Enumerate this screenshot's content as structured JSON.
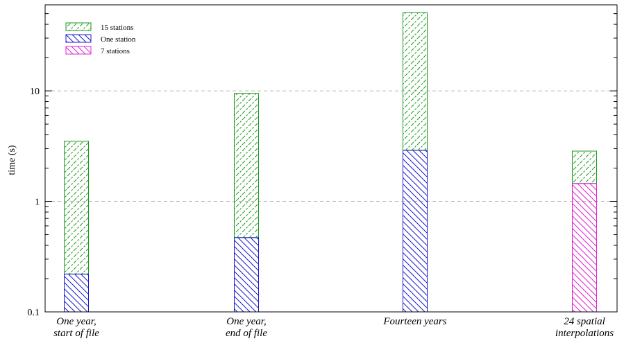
{
  "chart_data": {
    "type": "bar",
    "ylabel": "time (s)",
    "yscale": "log",
    "ylim": [
      0.1,
      60
    ],
    "grid": "y-major-dashed",
    "categories": [
      [
        "One year,",
        "start of file"
      ],
      [
        "One year,",
        "end of file"
      ],
      [
        "Fourteen years"
      ],
      [
        "24  spatial",
        "interpolations"
      ]
    ],
    "yticks": [
      {
        "value": 0.1,
        "label": "0.1"
      },
      {
        "value": 1,
        "label": "1"
      },
      {
        "value": 10,
        "label": "10"
      }
    ],
    "bars": [
      {
        "category": 0,
        "lower": {
          "series": "One station",
          "value": 0.22
        },
        "upper": {
          "series": "15 stations",
          "value": 3.5
        }
      },
      {
        "category": 1,
        "lower": {
          "series": "One station",
          "value": 0.47
        },
        "upper": {
          "series": "15 stations",
          "value": 9.5
        }
      },
      {
        "category": 2,
        "lower": {
          "series": "One station",
          "value": 2.9
        },
        "upper": {
          "series": "15 stations",
          "value": 51
        }
      },
      {
        "category": 3,
        "lower": {
          "series": "7 stations",
          "value": 1.45
        },
        "upper": {
          "series": "15 stations",
          "value": 2.85
        }
      }
    ],
    "legend": {
      "position": "top-left",
      "entries": [
        {
          "name": "15 stations",
          "color": "#1a9a1a",
          "hatch": "/"
        },
        {
          "name": "One station",
          "color": "#1a1acc",
          "hatch": "\\"
        },
        {
          "name": "7 stations",
          "color": "#e020d0",
          "hatch": "\\"
        }
      ]
    }
  }
}
